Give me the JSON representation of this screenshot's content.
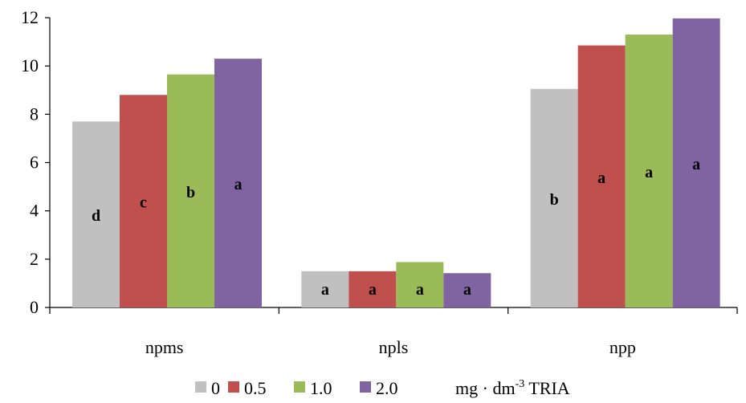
{
  "chart_data": {
    "type": "bar",
    "categories": [
      "npms",
      "npls",
      "npp"
    ],
    "series": [
      {
        "name": "0",
        "color": "#c0c0c0",
        "values": [
          7.7,
          1.5,
          9.05
        ],
        "labels": [
          "d",
          "a",
          "b"
        ]
      },
      {
        "name": "0.5",
        "color": "#c0504d",
        "values": [
          8.8,
          1.5,
          10.85
        ],
        "labels": [
          "c",
          "a",
          "a"
        ]
      },
      {
        "name": "1.0",
        "color": "#9bbb59",
        "values": [
          9.65,
          1.88,
          11.3
        ],
        "labels": [
          "b",
          "a",
          "a"
        ]
      },
      {
        "name": "2.0",
        "color": "#8064a2",
        "values": [
          10.3,
          1.42,
          11.97
        ],
        "labels": [
          "a",
          "a",
          "a"
        ]
      }
    ],
    "ylim": [
      0,
      12
    ],
    "yticks": [
      0,
      2,
      4,
      6,
      8,
      10,
      12
    ],
    "grid": false,
    "legend_position": "bottom",
    "legend_unit": {
      "main": "mg · dm",
      "sup": "-3",
      "suffix": " TRIA"
    }
  }
}
